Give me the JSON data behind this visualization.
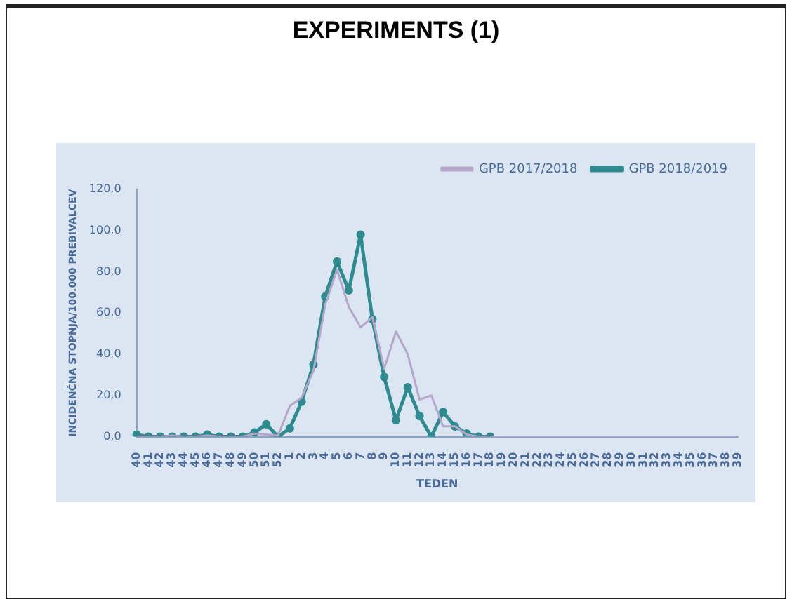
{
  "chart_data": {
    "type": "line",
    "title": "EXPERIMENTS (1)",
    "xlabel": "TEDEN",
    "ylabel": "INCIDENČNA STOPNJA/100.000 PREBIVALCEV",
    "categories": [
      "40",
      "41",
      "42",
      "43",
      "44",
      "45",
      "46",
      "47",
      "48",
      "49",
      "50",
      "51",
      "52",
      "1",
      "2",
      "3",
      "4",
      "5",
      "6",
      "7",
      "8",
      "9",
      "10",
      "11",
      "12",
      "13",
      "14",
      "15",
      "16",
      "17",
      "18",
      "19",
      "20",
      "21",
      "22",
      "23",
      "24",
      "25",
      "26",
      "27",
      "28",
      "29",
      "30",
      "31",
      "32",
      "33",
      "34",
      "35",
      "36",
      "37",
      "38",
      "39"
    ],
    "series": [
      {
        "name": "GPB 2017/2018",
        "color": "#b4a7c9",
        "marker": "none",
        "values": [
          0,
          0,
          0,
          0.5,
          0,
          0,
          0.5,
          0,
          0,
          0,
          1.5,
          1,
          0.5,
          15,
          19,
          32,
          64,
          81,
          63,
          53,
          58,
          33,
          51,
          40,
          18,
          20,
          5,
          5,
          1,
          0,
          0,
          0,
          0,
          0,
          0,
          0,
          0,
          0,
          0,
          0,
          0,
          0,
          0,
          0,
          0,
          0,
          0,
          0,
          0,
          0,
          0,
          0
        ]
      },
      {
        "name": "GPB 2018/2019",
        "color": "#2e8b8f",
        "marker": "circle",
        "values": [
          1,
          0,
          0,
          0,
          0,
          0,
          1,
          0,
          0,
          0,
          2,
          6,
          0,
          4,
          17,
          35,
          68,
          85,
          71,
          98,
          57,
          29,
          8,
          24,
          10,
          0,
          12,
          5,
          1.5,
          0,
          0,
          null,
          null,
          null,
          null,
          null,
          null,
          null,
          null,
          null,
          null,
          null,
          null,
          null,
          null,
          null,
          null,
          null,
          null,
          null,
          null,
          null
        ]
      }
    ],
    "ylim": [
      0,
      120
    ],
    "yticks": [
      {
        "value": 0,
        "label": "0,0"
      },
      {
        "value": 20,
        "label": "20,0"
      },
      {
        "value": 40,
        "label": "40,0"
      },
      {
        "value": 60,
        "label": "60,0"
      },
      {
        "value": 80,
        "label": "80,0"
      },
      {
        "value": 100,
        "label": "100,0"
      },
      {
        "value": 120,
        "label": "120,0"
      }
    ],
    "grid": false,
    "legend": "top right"
  }
}
